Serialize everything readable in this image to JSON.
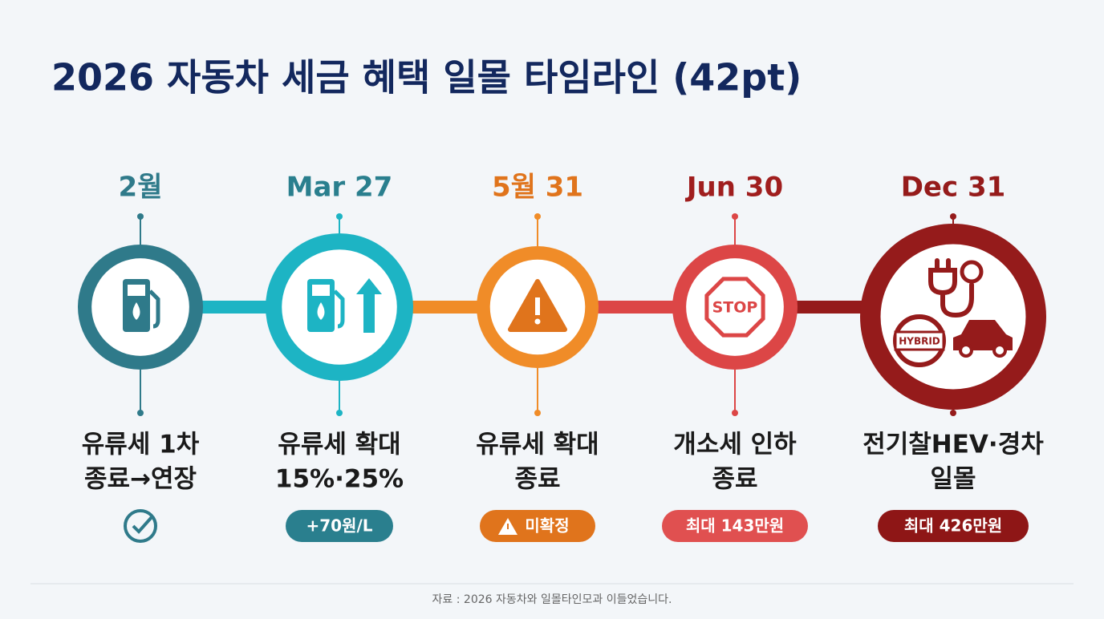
{
  "title": "2026 자동차 세금 혜택 일몰 타임라인 (42pt)",
  "items": [
    {
      "date": "2월",
      "label": [
        "유류세 1차",
        "종료→연장"
      ]
    },
    {
      "date": "Mar 27",
      "label": [
        "유류세 확대",
        "15%·25%"
      ],
      "badge": "+70원/L"
    },
    {
      "date": "5월 31",
      "label": [
        "유류세 확대",
        "종료"
      ],
      "badge": "미확정"
    },
    {
      "date": "Jun 30",
      "label": [
        "개소세 인하",
        "종료"
      ],
      "badge": "최대 143만원",
      "icon_text": "STOP"
    },
    {
      "date": "Dec 31",
      "label": [
        "전기찰HEV·경차",
        "일몰"
      ],
      "badge": "최대 426만원",
      "icon_text": "HYBRID"
    }
  ],
  "source": "자료 : 2026 자동차와 일몰타인모과 이들었습니다."
}
